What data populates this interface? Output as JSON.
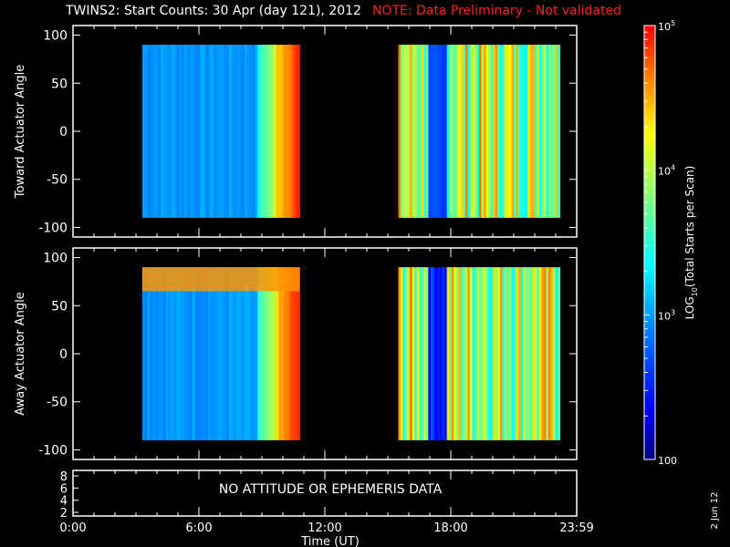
{
  "header": {
    "title": "TWINS2: Start Counts: 30 Apr (day 121), 2012",
    "note": "NOTE: Data Preliminary - Not validated"
  },
  "footer_date": "2 Jun 12",
  "message_panel": "NO ATTITUDE OR EPHEMERIS DATA",
  "colors": {
    "background": "#000000",
    "foreground": "#ffffff",
    "note": "#ff2020",
    "colorscale": [
      "#00007f",
      "#0000ff",
      "#0080ff",
      "#00ffff",
      "#80ff80",
      "#ffff00",
      "#ff8000",
      "#ff0000"
    ]
  },
  "chart_data": [
    {
      "type": "heatmap",
      "name": "toward",
      "ylabel": "Toward Actuator Angle",
      "xlabel": "",
      "xlim": [
        0,
        24
      ],
      "ylim": [
        -110,
        110
      ],
      "yticks": [
        100,
        50,
        0,
        -50,
        -100
      ],
      "x_tick_labels": [
        "0:00",
        "6:00",
        "12:00",
        "18:00",
        "23:59"
      ],
      "data_intervals_hours": [
        [
          3.3,
          10.8
        ],
        [
          15.5,
          23.2
        ]
      ],
      "angle_range": [
        -90,
        90
      ]
    },
    {
      "type": "heatmap",
      "name": "away",
      "ylabel": "Away Actuator Angle",
      "xlabel": "",
      "xlim": [
        0,
        24
      ],
      "ylim": [
        -110,
        110
      ],
      "yticks": [
        100,
        50,
        0,
        -50,
        -100
      ],
      "x_tick_labels": [
        "0:00",
        "6:00",
        "12:00",
        "18:00",
        "23:59"
      ],
      "data_intervals_hours": [
        [
          3.3,
          10.8
        ],
        [
          15.5,
          23.2
        ]
      ],
      "angle_range": [
        -90,
        90
      ],
      "bright_band_angle": [
        65,
        90
      ]
    },
    {
      "type": "line",
      "name": "attitude",
      "yticks": [
        8,
        6,
        4,
        2
      ],
      "xlabel": "Time (UT)",
      "x_tick_labels": [
        "0:00",
        "6:00",
        "12:00",
        "18:00",
        "23:59"
      ]
    }
  ],
  "colorbar": {
    "label_prefix": "LOG",
    "label_sub": "10",
    "label_suffix": "(Total Starts per Scan)",
    "ticks": [
      {
        "base": "10",
        "exp": "5",
        "value": 100000
      },
      {
        "base": "10",
        "exp": "4",
        "value": 10000
      },
      {
        "base": "10",
        "exp": "3",
        "value": 1000
      },
      {
        "base": "100",
        "exp": "",
        "value": 100
      }
    ],
    "range": [
      100,
      100000
    ],
    "scale": "log"
  }
}
